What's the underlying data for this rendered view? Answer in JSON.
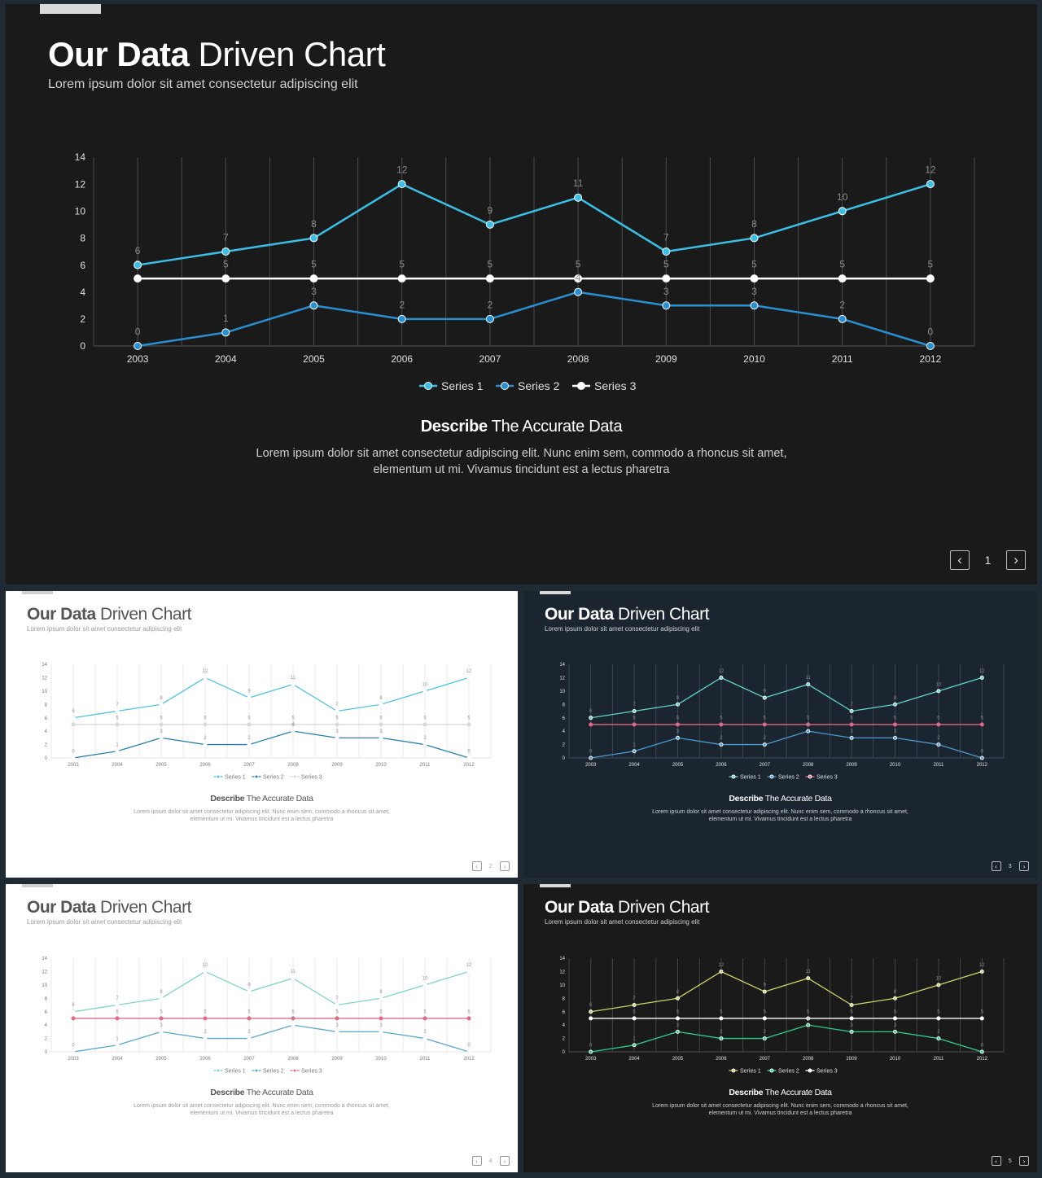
{
  "common": {
    "title_bold": "Our Data",
    "title_light": "Driven Chart",
    "subtitle": "Lorem ipsum dolor sit amet consectetur adipiscing elit",
    "describe_bold": "Describe",
    "describe_light": "The Accurate Data",
    "description_line1": "Lorem ipsum dolor sit amet consectetur adipiscing elit. Nunc enim sem, commodo a rhoncus sit amet,",
    "description_line2": "elementum ut mi. Vivamus tincidunt est a lectus pharetra"
  },
  "slides": [
    {
      "page": "1",
      "theme": "dark",
      "colors": {
        "bg": "#1a1a1a",
        "title": "#ffffff",
        "text": "#cfcfcf",
        "grid": "#4a4a4a",
        "axis_text": "#e0e0e0",
        "s1": "#3bbfe6",
        "s2": "#2a8fd0",
        "s3": "#ffffff",
        "tab": "#d9d9d9"
      }
    },
    {
      "page": "2",
      "theme": "light",
      "colors": {
        "bg": "#ffffff",
        "title": "#555555",
        "text": "#9a9a9a",
        "grid": "#eaeaea",
        "axis_text": "#777777",
        "s1": "#4fc3dd",
        "s2": "#2b7fa8",
        "s3": "#d9d9d9",
        "tab": "#d0d0d0"
      }
    },
    {
      "page": "3",
      "theme": "navy",
      "colors": {
        "bg": "#1b2530",
        "title": "#ffffff",
        "text": "#d0d0d0",
        "grid": "#3a4652",
        "axis_text": "#e0e0e0",
        "s1": "#5fd6c4",
        "s2": "#4a9bd0",
        "s3": "#e06b86",
        "tab": "#d9d9d9"
      }
    },
    {
      "page": "4",
      "theme": "light",
      "colors": {
        "bg": "#ffffff",
        "title": "#555555",
        "text": "#9a9a9a",
        "grid": "#eaeaea",
        "axis_text": "#777777",
        "s1": "#7fd3c8",
        "s2": "#5ba7cc",
        "s3": "#e06b86",
        "tab": "#d0d0d0"
      }
    },
    {
      "page": "5",
      "theme": "black",
      "colors": {
        "bg": "#1a1a1a",
        "title": "#ffffff",
        "text": "#d0d0d0",
        "grid": "#444444",
        "axis_text": "#e0e0e0",
        "s1": "#c9d56a",
        "s2": "#2fcf8f",
        "s3": "#ffffff",
        "tab": "#d9d9d9"
      }
    }
  ],
  "chart_data": {
    "type": "line",
    "x": [
      "2003",
      "2004",
      "2005",
      "2006",
      "2007",
      "2008",
      "2009",
      "2010",
      "2011",
      "2012"
    ],
    "y_ticks": [
      "0",
      "2",
      "4",
      "6",
      "8",
      "10",
      "12",
      "14"
    ],
    "ylim": [
      0,
      14
    ],
    "grid": "vertical",
    "legend": "bottom-center",
    "series": [
      {
        "name": "Series 1",
        "values": [
          6,
          7,
          8,
          12,
          9,
          11,
          7,
          8,
          10,
          12
        ]
      },
      {
        "name": "Series 2",
        "values": [
          0,
          1,
          3,
          2,
          2,
          4,
          3,
          3,
          2,
          0
        ]
      },
      {
        "name": "Series 3",
        "values": [
          5,
          5,
          5,
          5,
          5,
          5,
          5,
          5,
          5,
          5
        ]
      }
    ]
  }
}
